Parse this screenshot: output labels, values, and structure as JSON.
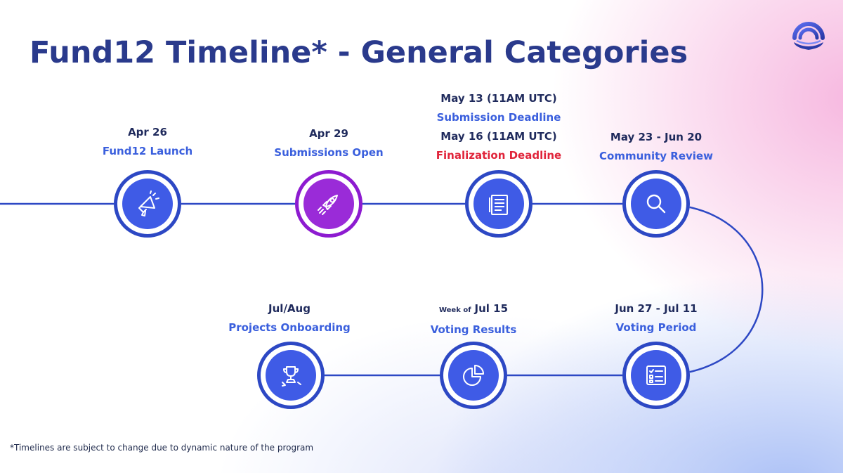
{
  "title": "Fund12 Timeline* - General Categories",
  "footnote": "*Timelines are subject to change due to dynamic nature of the program",
  "colors": {
    "navy": "#2a3a8c",
    "accent_blue": "#3a5fdd",
    "node_blue": "#3f5be6",
    "node_purple": "#9a2bd8",
    "deadline_red": "#e0243a",
    "line": "#2d48c4"
  },
  "milestones": [
    {
      "date": "Apr 26",
      "label": "Fund12 Launch",
      "icon": "megaphone-icon"
    },
    {
      "date": "Apr 29",
      "label": "Submissions Open",
      "icon": "rocket-icon"
    },
    {
      "date": "May 13 (11AM UTC)",
      "label": "Submission Deadline",
      "date2": "May 16 (11AM UTC)",
      "label2": "Finalization Deadline",
      "icon": "document-icon"
    },
    {
      "date": "May 23 - Jun 20",
      "label": "Community Review",
      "icon": "magnifier-icon"
    },
    {
      "date": "Jun 27 - Jul 11",
      "label": "Voting Period",
      "icon": "ballot-checklist-icon"
    },
    {
      "date_prefix": "Week of",
      "date": "Jul 15",
      "label": "Voting Results",
      "icon": "pie-chart-icon"
    },
    {
      "date": "Jul/Aug",
      "label": "Projects Onboarding",
      "icon": "trophy-icon"
    }
  ]
}
